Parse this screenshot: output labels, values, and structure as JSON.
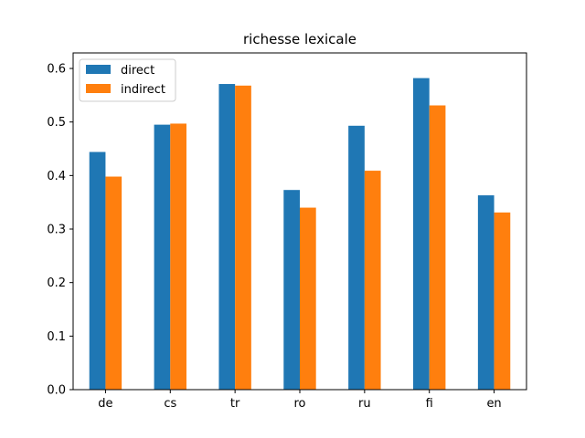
{
  "chart_data": {
    "type": "bar",
    "title": "richesse lexicale",
    "xlabel": "",
    "ylabel": "",
    "categories": [
      "de",
      "cs",
      "tr",
      "ro",
      "ru",
      "fi",
      "en"
    ],
    "series": [
      {
        "name": "direct",
        "color": "#1f77b4",
        "values": [
          0.444,
          0.495,
          0.571,
          0.373,
          0.493,
          0.582,
          0.363
        ]
      },
      {
        "name": "indirect",
        "color": "#ff7f0e",
        "values": [
          0.398,
          0.497,
          0.568,
          0.34,
          0.409,
          0.531,
          0.331
        ]
      }
    ],
    "ylim": [
      0,
      0.6
    ],
    "yticks": [
      "0.0",
      "0.1",
      "0.2",
      "0.3",
      "0.4",
      "0.5",
      "0.6"
    ],
    "grid": false,
    "legend_position": "upper-left"
  }
}
